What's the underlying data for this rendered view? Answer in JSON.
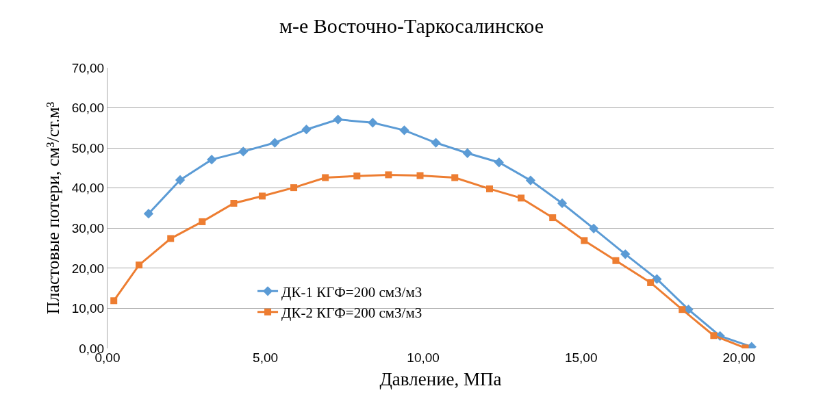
{
  "chart_data": {
    "type": "line",
    "title": "м-е Восточно-Таркосалинское",
    "xlabel": "Давление, МПа",
    "ylabel": "Пластовые потери, см³/ст.м³",
    "xlim": [
      0,
      21.1
    ],
    "xticks": [
      {
        "value": 0,
        "label": "0,00"
      },
      {
        "value": 5,
        "label": "5,00"
      },
      {
        "value": 10,
        "label": "10,00"
      },
      {
        "value": 15,
        "label": "15,00"
      },
      {
        "value": 20,
        "label": "20,00"
      }
    ],
    "ylim": [
      0,
      70
    ],
    "yticks": [
      {
        "value": 0,
        "label": "0,00"
      },
      {
        "value": 10,
        "label": "10,00"
      },
      {
        "value": 20,
        "label": "20,00"
      },
      {
        "value": 30,
        "label": "30,00"
      },
      {
        "value": 40,
        "label": "40,00"
      },
      {
        "value": 50,
        "label": "50,00"
      },
      {
        "value": 60,
        "label": "60,00"
      },
      {
        "value": 70,
        "label": "70,00"
      }
    ],
    "grid": "y",
    "legend": "bottom left",
    "line_style": "solid",
    "series": [
      {
        "name": "ДК-1 КГФ=200 см3/м3",
        "color": "#5b9bd5",
        "marker": "diamond",
        "x": [
          1.3,
          2.3,
          3.3,
          4.3,
          5.3,
          6.3,
          7.3,
          8.4,
          9.4,
          10.4,
          11.4,
          12.4,
          13.4,
          14.4,
          15.4,
          16.4,
          17.4,
          18.4,
          19.4,
          20.4
        ],
        "values": [
          33.6,
          42.0,
          47.1,
          49.1,
          51.3,
          54.6,
          57.1,
          56.3,
          54.4,
          51.3,
          48.7,
          46.4,
          41.9,
          36.2,
          29.9,
          23.5,
          17.3,
          9.7,
          3.1,
          0.4
        ]
      },
      {
        "name": "ДК-2 КГФ=200 см3/м3",
        "color": "#ed7d31",
        "marker": "square",
        "x": [
          0.2,
          1.0,
          2.0,
          3.0,
          4.0,
          4.9,
          5.9,
          6.9,
          7.9,
          8.9,
          9.9,
          11.0,
          12.1,
          13.1,
          14.1,
          15.1,
          16.1,
          17.2,
          18.2,
          19.2,
          20.2
        ],
        "values": [
          11.9,
          20.8,
          27.4,
          31.6,
          36.2,
          38.0,
          40.1,
          42.6,
          43.0,
          43.3,
          43.1,
          42.6,
          39.8,
          37.5,
          32.6,
          26.9,
          21.9,
          16.4,
          9.7,
          3.2,
          0.1
        ]
      }
    ]
  }
}
